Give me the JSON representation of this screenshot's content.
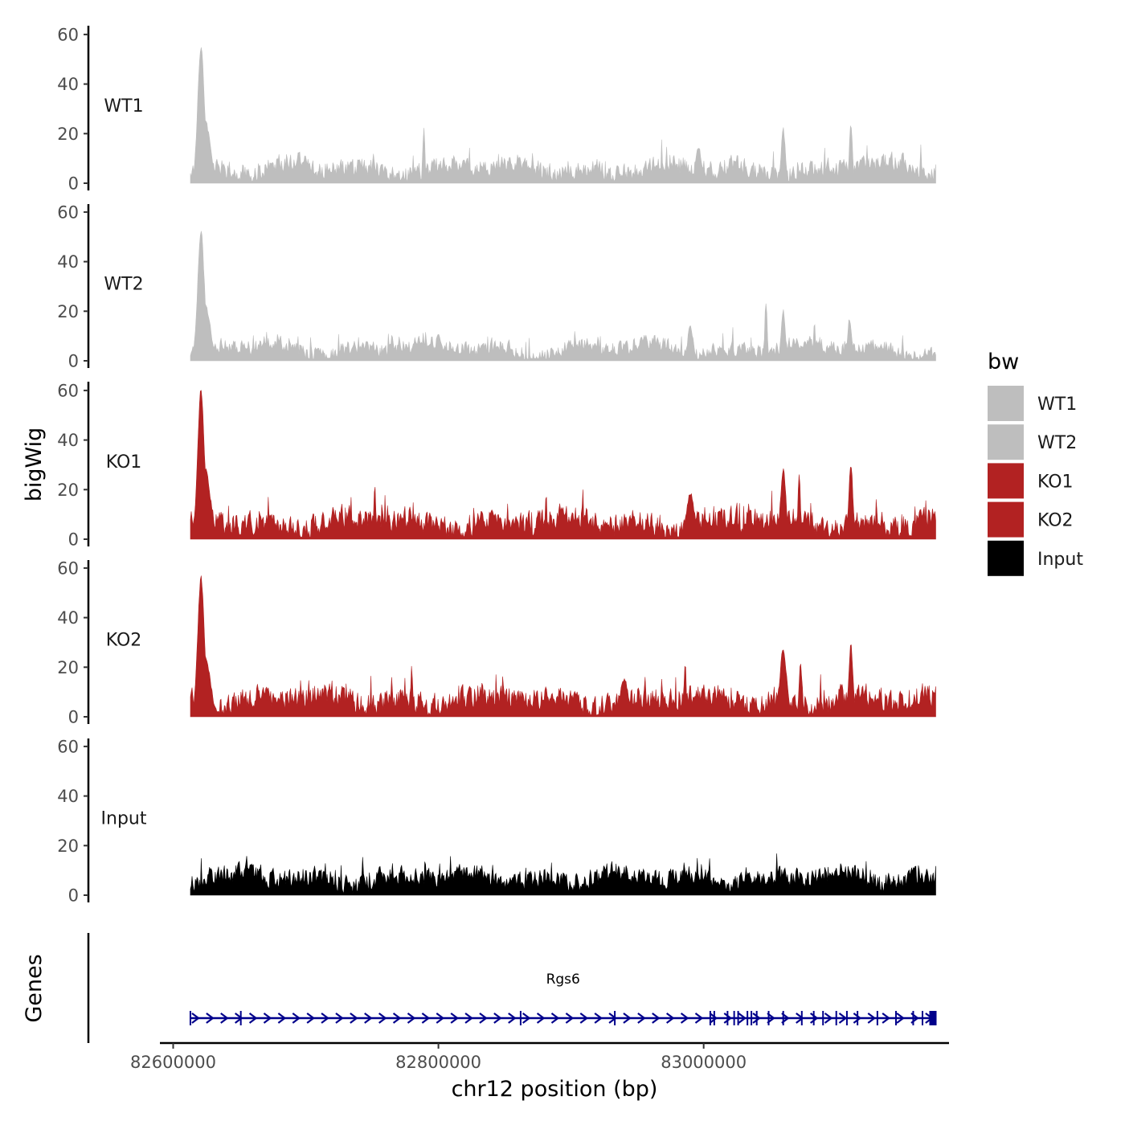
{
  "chart_data": {
    "type": "area",
    "description_of_view": "Genome browser coverage tracks",
    "ylabel": "bigWig",
    "xlabel": "chr12 position (bp)",
    "xlim": [
      82590000,
      83185000
    ],
    "data_range": [
      82613000,
      83175000
    ],
    "ylim": [
      0,
      60
    ],
    "y_ticks": [
      "0",
      "20",
      "40",
      "60"
    ],
    "x_ticks": [
      {
        "value": 82600000,
        "label": "82600000"
      },
      {
        "value": 82800000,
        "label": "82800000"
      },
      {
        "value": 83000000,
        "label": "83000000"
      }
    ],
    "legend": {
      "title": "bw",
      "entries": [
        {
          "label": "WT1",
          "color": "#BEBEBE"
        },
        {
          "label": "WT2",
          "color": "#BEBEBE"
        },
        {
          "label": "KO1",
          "color": "#B22222"
        },
        {
          "label": "KO2",
          "color": "#B22222"
        },
        {
          "label": "Input",
          "color": "#000000"
        }
      ]
    },
    "series": [
      {
        "name": "WT1",
        "color": "#BEBEBE",
        "baseline": 6,
        "noise": 5,
        "peaks": [
          [
            82621000,
            55,
            2500
          ],
          [
            82624000,
            25,
            4000
          ],
          [
            82789000,
            23,
            800
          ],
          [
            83060000,
            22,
            1500
          ],
          [
            83111000,
            23,
            1200
          ],
          [
            82996000,
            15,
            2000
          ]
        ]
      },
      {
        "name": "WT2",
        "color": "#BEBEBE",
        "baseline": 5,
        "noise": 4,
        "peaks": [
          [
            82621000,
            52,
            2500
          ],
          [
            82624000,
            22,
            4000
          ],
          [
            83047000,
            24,
            900
          ],
          [
            83060000,
            20,
            1500
          ],
          [
            83110000,
            17,
            1500
          ],
          [
            82990000,
            14,
            2000
          ]
        ]
      },
      {
        "name": "KO1",
        "color": "#B22222",
        "baseline": 7,
        "noise": 6,
        "peaks": [
          [
            82621000,
            60,
            2500
          ],
          [
            82624000,
            28,
            4000
          ],
          [
            82752000,
            23,
            700
          ],
          [
            83060000,
            28,
            2000
          ],
          [
            83072000,
            27,
            900
          ],
          [
            83111000,
            30,
            1500
          ],
          [
            82990000,
            18,
            3000
          ]
        ]
      },
      {
        "name": "KO2",
        "color": "#B22222",
        "baseline": 7,
        "noise": 6,
        "peaks": [
          [
            82621000,
            56,
            2500
          ],
          [
            82624000,
            24,
            4000
          ],
          [
            82986000,
            22,
            800
          ],
          [
            83060000,
            27,
            2500
          ],
          [
            83073000,
            22,
            1000
          ],
          [
            83111000,
            29,
            1500
          ],
          [
            82940000,
            15,
            3000
          ]
        ]
      },
      {
        "name": "Input",
        "color": "#000000",
        "baseline": 7,
        "noise": 5,
        "peaks": [
          [
            82743000,
            15,
            400
          ],
          [
            82790000,
            17,
            400
          ],
          [
            83055000,
            17,
            400
          ]
        ]
      }
    ],
    "genes": {
      "title": "Genes",
      "items": [
        {
          "name": "Rgs6",
          "start": 82613000,
          "end": 83175000,
          "strand": "+",
          "color": "#00008B",
          "exons": [
            82613000,
            82651000,
            82862000,
            82933000,
            83005000,
            83008000,
            83018000,
            83023000,
            83026000,
            83033000,
            83036000,
            83040000,
            83049000,
            83060000,
            83074000,
            83083000,
            83090000,
            83100000,
            83108000,
            83116000,
            83131000,
            83145000,
            83158000,
            83165000,
            83172000,
            83175000
          ]
        }
      ]
    }
  }
}
